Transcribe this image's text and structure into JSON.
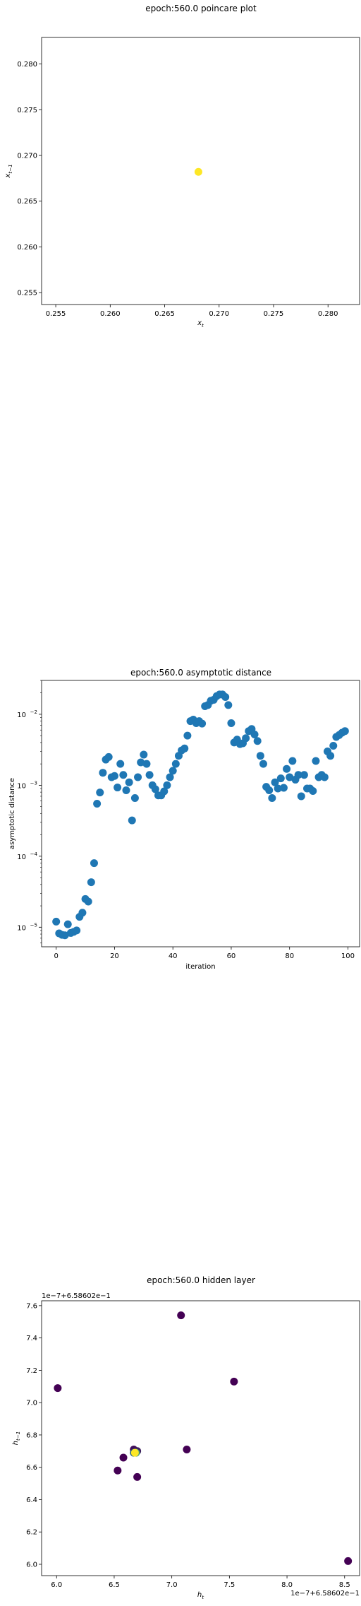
{
  "chart_data": [
    {
      "type": "scatter",
      "title": "epoch:560.0 poincare plot",
      "xlabel": "x_t",
      "ylabel": "x_{t-1}",
      "xlim": [
        0.2537,
        0.2829
      ],
      "ylim": [
        0.2537,
        0.2829
      ],
      "xticks": [
        0.255,
        0.26,
        0.265,
        0.27,
        0.275,
        0.28
      ],
      "xtick_labels": [
        "0.255",
        "0.260",
        "0.265",
        "0.270",
        "0.275",
        "0.280"
      ],
      "yticks": [
        0.255,
        0.26,
        0.265,
        0.27,
        0.275,
        0.28
      ],
      "ytick_labels": [
        "0.255",
        "0.260",
        "0.265",
        "0.270",
        "0.275",
        "0.280"
      ],
      "grid": false,
      "point_color": "#fde725",
      "points": [
        [
          0.2681,
          0.2682
        ]
      ]
    },
    {
      "type": "scatter",
      "title": "epoch:560.0 asymptotic distance",
      "xlabel": "iteration",
      "ylabel": "asymptotic distance",
      "yscale": "log",
      "xlim": [
        -5,
        104
      ],
      "ylim": [
        5.3e-06,
        0.03
      ],
      "xticks": [
        0,
        20,
        40,
        60,
        80,
        100
      ],
      "xtick_labels": [
        "0",
        "20",
        "40",
        "60",
        "80",
        "100"
      ],
      "yticks": [
        1e-05,
        0.0001,
        0.001,
        0.01
      ],
      "ytick_labels": [
        "10",
        "10",
        "10",
        "10"
      ],
      "ytick_exponents": [
        "−5",
        "−4",
        "−3",
        "−2"
      ],
      "grid": false,
      "point_color": "#1f77b4",
      "x": [
        0,
        1,
        2,
        3,
        4,
        5,
        6,
        7,
        8,
        9,
        10,
        11,
        12,
        13,
        14,
        15,
        16,
        17,
        18,
        19,
        20,
        21,
        22,
        23,
        24,
        25,
        26,
        27,
        28,
        29,
        30,
        31,
        32,
        33,
        34,
        35,
        36,
        37,
        38,
        39,
        40,
        41,
        42,
        43,
        44,
        45,
        46,
        47,
        48,
        49,
        50,
        51,
        52,
        53,
        54,
        55,
        56,
        57,
        58,
        59,
        60,
        61,
        62,
        63,
        64,
        65,
        66,
        67,
        68,
        69,
        70,
        71,
        72,
        73,
        74,
        75,
        76,
        77,
        78,
        79,
        80,
        81,
        82,
        83,
        84,
        85,
        86,
        87,
        88,
        89,
        90,
        91,
        92,
        93,
        94,
        95,
        96,
        97,
        98,
        99
      ],
      "y": [
        1.2e-05,
        8.2e-06,
        7.8e-06,
        7.7e-06,
        1.1e-05,
        8.3e-06,
        8.6e-06,
        9e-06,
        1.4e-05,
        1.6e-05,
        2.5e-05,
        2.3e-05,
        4.3e-05,
        8e-05,
        0.00055,
        0.00079,
        0.0015,
        0.0023,
        0.0025,
        0.0013,
        0.00135,
        0.00093,
        0.002,
        0.0014,
        0.00085,
        0.0011,
        0.00032,
        0.00066,
        0.0013,
        0.0021,
        0.0027,
        0.002,
        0.0014,
        0.001,
        0.00088,
        0.00072,
        0.00072,
        0.00082,
        0.001,
        0.0013,
        0.0016,
        0.002,
        0.0026,
        0.0031,
        0.0033,
        0.005,
        0.008,
        0.0084,
        0.0075,
        0.008,
        0.0074,
        0.013,
        0.0135,
        0.0155,
        0.016,
        0.018,
        0.019,
        0.019,
        0.0175,
        0.0135,
        0.0075,
        0.004,
        0.0044,
        0.0038,
        0.0039,
        0.0046,
        0.0058,
        0.0062,
        0.0052,
        0.0042,
        0.0026,
        0.002,
        0.00095,
        0.00085,
        0.00066,
        0.0011,
        0.0009,
        0.00125,
        0.00092,
        0.0017,
        0.0013,
        0.0022,
        0.0012,
        0.0014,
        0.0007,
        0.0014,
        0.0009,
        0.0009,
        0.00083,
        0.0022,
        0.0013,
        0.0014,
        0.0013,
        0.003,
        0.0026,
        0.0036,
        0.0048,
        0.0051,
        0.0055,
        0.0058
      ]
    },
    {
      "type": "scatter",
      "title": "epoch:560.0 hidden layer",
      "xlabel": "h_t",
      "ylabel": "h_{t-1}",
      "x_offset_label": "1e−7+6.58602e−1",
      "y_offset_label": "1e−7+6.58602e−1",
      "xlim": [
        5.87,
        8.63
      ],
      "ylim": [
        5.93,
        7.63
      ],
      "xticks": [
        6.0,
        6.5,
        7.0,
        7.5,
        8.0,
        8.5
      ],
      "xtick_labels": [
        "6.0",
        "6.5",
        "7.0",
        "7.5",
        "8.0",
        "8.5"
      ],
      "yticks": [
        6.0,
        6.2,
        6.4,
        6.6,
        6.8,
        7.0,
        7.2,
        7.4,
        7.6
      ],
      "ytick_labels": [
        "6.0",
        "6.2",
        "6.4",
        "6.6",
        "6.8",
        "7.0",
        "7.2",
        "7.4",
        "7.6"
      ],
      "grid": false,
      "colormap": "viridis",
      "colors": {
        "start": "#440154",
        "mid": "#21918c",
        "end": "#fde725"
      },
      "points": [
        [
          6.01,
          7.09,
          0.0
        ],
        [
          7.08,
          7.54,
          0.0
        ],
        [
          7.54,
          7.13,
          0.0
        ],
        [
          8.53,
          6.02,
          0.0
        ],
        [
          7.13,
          6.71,
          0.0
        ],
        [
          6.53,
          6.58,
          0.0
        ],
        [
          6.7,
          6.54,
          0.0
        ],
        [
          6.58,
          6.66,
          0.0
        ],
        [
          6.67,
          6.71,
          0.05
        ],
        [
          6.7,
          6.7,
          0.1
        ],
        [
          6.67,
          6.69,
          0.35
        ],
        [
          6.69,
          6.69,
          0.6
        ],
        [
          6.68,
          6.69,
          1.0
        ]
      ]
    }
  ]
}
